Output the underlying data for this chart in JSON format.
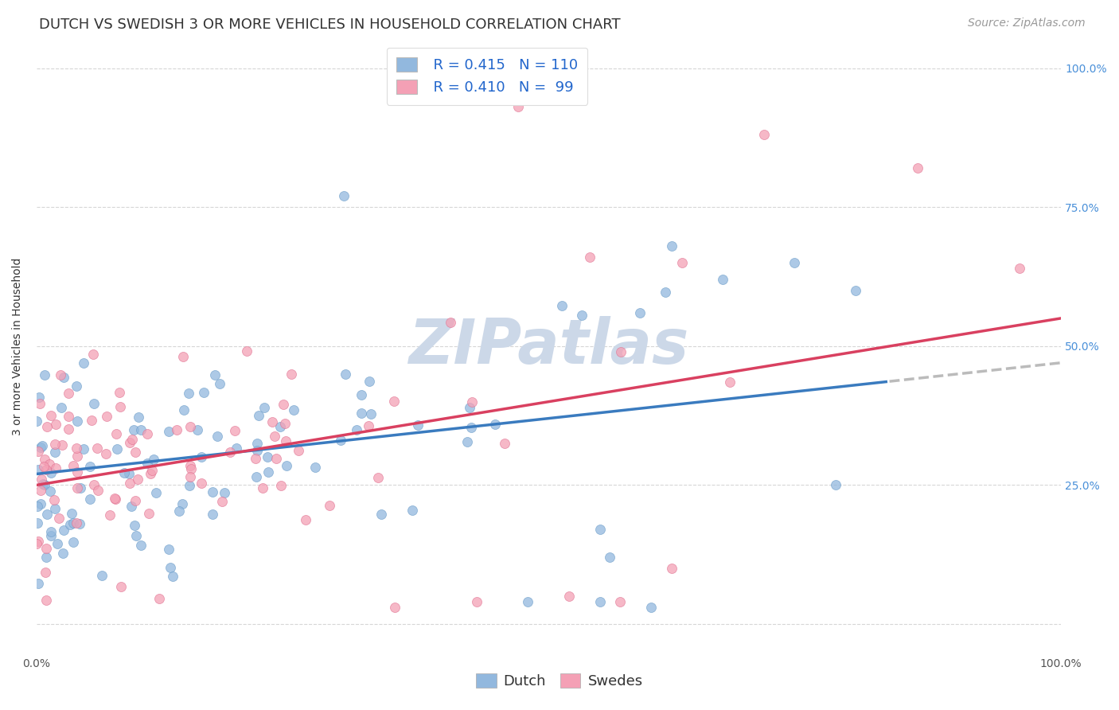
{
  "title": "DUTCH VS SWEDISH 3 OR MORE VEHICLES IN HOUSEHOLD CORRELATION CHART",
  "source": "Source: ZipAtlas.com",
  "ylabel": "3 or more Vehicles in Household",
  "xlim": [
    0,
    1
  ],
  "ylim": [
    -0.05,
    1.05
  ],
  "dutch_R": 0.415,
  "dutch_N": 110,
  "swedish_R": 0.41,
  "swedish_N": 99,
  "dutch_color": "#92b8de",
  "dutch_edge_color": "#6a9cc8",
  "swedish_color": "#f4a0b5",
  "swedish_edge_color": "#e07090",
  "dutch_line_color": "#3a7bbf",
  "swedish_line_color": "#d94060",
  "trend_dashed_color": "#bbbbbb",
  "background_color": "#ffffff",
  "grid_color": "#cccccc",
  "title_color": "#333333",
  "watermark_color": "#ccd8e8",
  "right_axis_color": "#4a90d9",
  "legend_text_color": "#2266cc",
  "title_fontsize": 13,
  "source_fontsize": 10,
  "axis_label_fontsize": 10,
  "tick_fontsize": 10,
  "legend_fontsize": 13
}
